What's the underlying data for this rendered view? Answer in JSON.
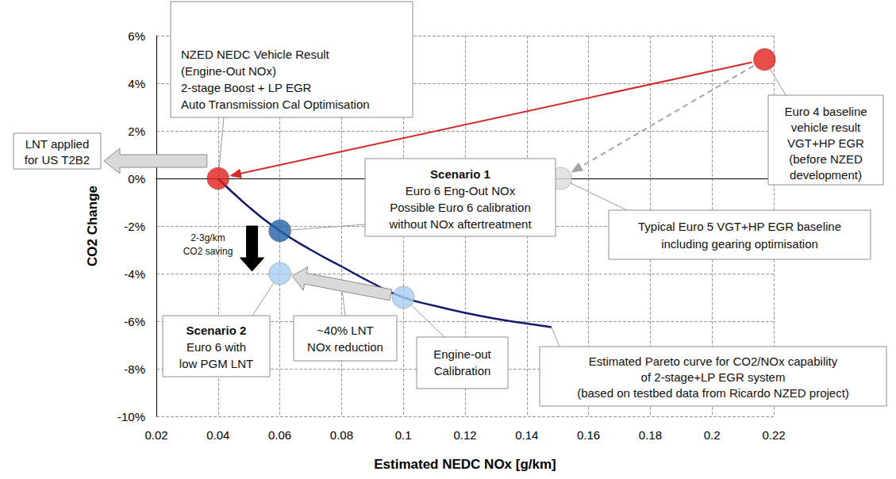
{
  "chart_data": {
    "type": "scatter",
    "x_label": "Estimated NEDC NOx [g/km]",
    "y_label": "CO2 Change",
    "xlim": [
      0.02,
      0.22
    ],
    "xticks": [
      0.02,
      0.04,
      0.06,
      0.08,
      0.1,
      0.12,
      0.14,
      0.16,
      0.18,
      0.2,
      0.22
    ],
    "ylim": [
      -10,
      6
    ],
    "yticks": [
      {
        "value": -10,
        "label": "-10%"
      },
      {
        "value": -8,
        "label": "-8%"
      },
      {
        "value": -6,
        "label": "-6%"
      },
      {
        "value": -4,
        "label": "-4%"
      },
      {
        "value": -2,
        "label": "-2%"
      },
      {
        "value": 0,
        "label": "0%"
      },
      {
        "value": 2,
        "label": "2%"
      },
      {
        "value": 4,
        "label": "4%"
      },
      {
        "value": 6,
        "label": "6%"
      }
    ],
    "grid": true,
    "series": [
      {
        "type": "line",
        "color": "#111a6e",
        "line_style": "solid",
        "x": [
          0.04,
          0.05,
          0.06,
          0.07,
          0.08,
          0.09,
          0.1,
          0.11,
          0.12,
          0.13,
          0.14,
          0.148
        ],
        "values": [
          0,
          -1.2,
          -2.2,
          -3.0,
          -3.7,
          -4.4,
          -5.0,
          -5.35,
          -5.65,
          -5.9,
          -6.1,
          -6.25
        ]
      },
      {
        "type": "scatter",
        "marker": "circle",
        "x": [
          0.217,
          0.151,
          0.04,
          0.06,
          0.06,
          0.1
        ],
        "values": [
          5,
          0,
          0,
          -2.2,
          -4,
          -5
        ],
        "colors": [
          "#e0201b",
          "#dcdcdc",
          "#e0201b",
          "#2060a8",
          "#a8cdf0",
          "#a8cdf0"
        ]
      }
    ],
    "annotations": [
      {
        "text": [
          "NZED NEDC Vehicle Result",
          "(Engine-Out NOx)",
          "2-stage Boost + LP EGR",
          "Auto Transmission Cal Optimisation"
        ],
        "at": [
          0.04,
          0
        ]
      },
      {
        "text": [
          "Euro 4 baseline",
          "vehicle result",
          "VGT+HP EGR",
          "(before NZED",
          "development)"
        ],
        "at": [
          0.217,
          5
        ]
      },
      {
        "text": [
          "Typical Euro 5 VGT+HP EGR baseline",
          "including gearing optimisation"
        ],
        "at": [
          0.151,
          0
        ]
      },
      {
        "title": "Scenario 1",
        "text": [
          "Euro 6 Eng-Out NOx",
          "Possible Euro 6 calibration",
          "without NOx aftertreatment"
        ],
        "at": [
          0.06,
          -2.2
        ]
      },
      {
        "text": [
          "LNT applied",
          "for US T2B2"
        ],
        "at": [
          0.04,
          0
        ]
      },
      {
        "title": "Scenario 2",
        "text": [
          "Euro 6 with",
          "low PGM LNT"
        ],
        "at": [
          0.06,
          -4
        ]
      },
      {
        "text": [
          "~40% LNT",
          "NOx reduction"
        ],
        "at": [
          0.08,
          -4.5
        ]
      },
      {
        "text": [
          "Engine-out",
          "Calibration"
        ],
        "at": [
          0.1,
          -5
        ]
      },
      {
        "text": [
          "Estimated Pareto curve for CO2/NOx capability",
          "of 2-stage+LP EGR system",
          "(based on testbed data from Ricardo NZED project)"
        ],
        "at": [
          0.148,
          -6.25
        ]
      },
      {
        "text": [
          "2-3g/km",
          "CO2 saving"
        ]
      }
    ],
    "arrows": [
      {
        "from": [
          0.217,
          5
        ],
        "to": [
          0.04,
          0
        ],
        "color": "#d42a2a",
        "line_style": "solid"
      },
      {
        "from": [
          0.217,
          5
        ],
        "to": [
          0.151,
          0
        ],
        "color": "#a6a6a6",
        "line_style": "dashed"
      },
      {
        "from": [
          0.1,
          -5
        ],
        "to": [
          0.06,
          -4
        ],
        "color": "#d9d9d9",
        "line_style": "block"
      },
      {
        "from": [
          0.051,
          -2
        ],
        "to": [
          0.051,
          -3.9
        ],
        "color": "#000000",
        "line_style": "block"
      }
    ]
  }
}
